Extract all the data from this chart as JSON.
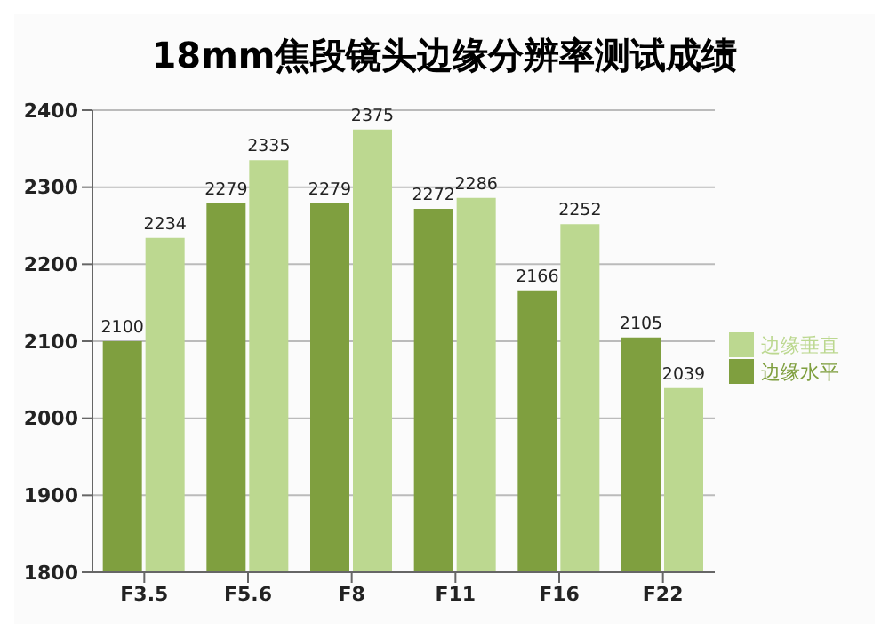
{
  "chart_data": {
    "type": "bar",
    "title": "18mm焦段镜头边缘分辨率测试成绩",
    "categories": [
      "F3.5",
      "F5.6",
      "F8",
      "F11",
      "F16",
      "F22"
    ],
    "series": [
      {
        "name": "边缘水平",
        "color": "#7f9f3f",
        "values": [
          2100,
          2279,
          2279,
          2272,
          2166,
          2105
        ]
      },
      {
        "name": "边缘垂直",
        "color": "#bcd890",
        "values": [
          2234,
          2335,
          2375,
          2286,
          2252,
          2039
        ]
      }
    ],
    "ylim": [
      1800,
      2400
    ],
    "yticks": [
      1800,
      1900,
      2000,
      2100,
      2200,
      2300,
      2400
    ],
    "grid": "y",
    "legend": "right",
    "data_labels": true
  }
}
